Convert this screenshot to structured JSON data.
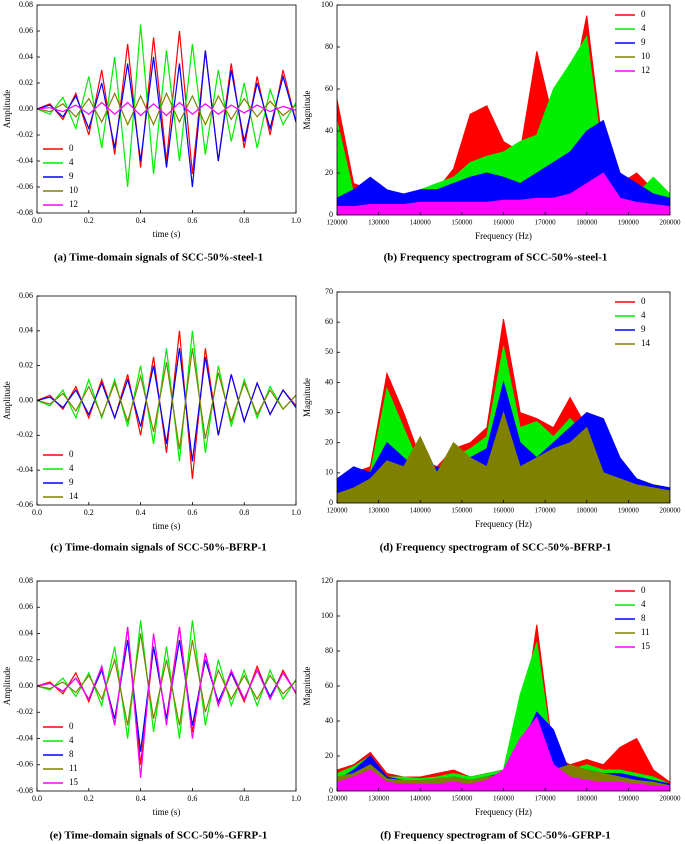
{
  "chart_data": [
    {
      "type": "line",
      "caption": "(a)  Time-domain signals of SCC-50%-steel-1",
      "x_label": "time (s)",
      "y_label": "Amplitude",
      "legend": "lower left",
      "x": [
        0,
        0.05,
        0.1,
        0.15,
        0.2,
        0.25,
        0.3,
        0.35,
        0.4,
        0.45,
        0.5,
        0.55,
        0.6,
        0.65,
        0.7,
        0.75,
        0.8,
        0.85,
        0.9,
        0.95,
        1.0
      ],
      "xlim": [
        0,
        1.0
      ],
      "xticks": [
        {
          "value": 0,
          "label": "0.0"
        },
        0.2,
        0.4,
        0.6,
        0.8,
        {
          "value": 1,
          "label": "1.0"
        }
      ],
      "ylim": [
        -0.08,
        0.08
      ],
      "yticks": [
        -0.08,
        -0.06,
        -0.04,
        -0.02,
        {
          "value": 0,
          "label": "0.00"
        },
        0.02,
        0.04,
        0.06,
        0.08
      ],
      "series": [
        {
          "name": "0",
          "color": "#ff0000",
          "values": [
            0,
            0.004,
            -0.008,
            0.012,
            -0.02,
            0.03,
            -0.035,
            0.05,
            -0.045,
            0.055,
            -0.04,
            0.06,
            -0.05,
            0.045,
            -0.04,
            0.035,
            -0.03,
            0.025,
            -0.02,
            0.03,
            -0.01
          ]
        },
        {
          "name": "4",
          "color": "#00ee00",
          "values": [
            0,
            -0.004,
            0.009,
            -0.015,
            0.025,
            -0.03,
            0.04,
            -0.06,
            0.065,
            -0.05,
            0.045,
            -0.04,
            0.05,
            -0.035,
            0.03,
            -0.025,
            0.02,
            -0.03,
            0.015,
            -0.012,
            0.005
          ]
        },
        {
          "name": "9",
          "color": "#0000ff",
          "values": [
            0,
            0.003,
            -0.006,
            0.01,
            -0.015,
            0.02,
            -0.03,
            0.035,
            -0.04,
            0.04,
            -0.045,
            0.035,
            -0.06,
            0.045,
            -0.04,
            0.03,
            -0.025,
            0.02,
            -0.015,
            0.025,
            -0.01
          ]
        },
        {
          "name": "10",
          "color": "#808000",
          "values": [
            0,
            -0.002,
            0.004,
            -0.006,
            0.008,
            -0.01,
            0.012,
            -0.012,
            0.01,
            -0.012,
            0.012,
            -0.01,
            0.01,
            -0.012,
            0.01,
            -0.008,
            0.008,
            -0.006,
            0.006,
            -0.005,
            0.003
          ]
        },
        {
          "name": "12",
          "color": "#ff00ff",
          "values": [
            0,
            0.001,
            -0.002,
            0.003,
            -0.004,
            0.005,
            -0.004,
            0.005,
            -0.005,
            0.004,
            -0.005,
            0.005,
            -0.004,
            0.004,
            -0.004,
            0.003,
            -0.003,
            0.003,
            -0.002,
            0.002,
            -0.001
          ]
        }
      ]
    },
    {
      "type": "area",
      "caption": "(b)  Frequency spectrogram of SCC-50%-steel-1",
      "x_label": "Frequency (Hz)",
      "y_label": "Magnitude",
      "legend": "upper right",
      "x": [
        120000,
        124000,
        128000,
        132000,
        136000,
        140000,
        144000,
        148000,
        152000,
        156000,
        160000,
        164000,
        168000,
        172000,
        176000,
        180000,
        184000,
        188000,
        192000,
        196000,
        200000
      ],
      "xlim": [
        120000,
        200000
      ],
      "xticks": [
        120000,
        130000,
        140000,
        150000,
        160000,
        170000,
        180000,
        190000,
        200000
      ],
      "ylim": [
        0,
        100
      ],
      "yticks": [
        0,
        20,
        40,
        60,
        80,
        100
      ],
      "series": [
        {
          "name": "0",
          "color": "#ff0000",
          "values": [
            55,
            15,
            12,
            10,
            8,
            10,
            12,
            22,
            48,
            52,
            35,
            30,
            78,
            45,
            55,
            95,
            30,
            15,
            20,
            12,
            8
          ]
        },
        {
          "name": "4",
          "color": "#00ee00",
          "values": [
            45,
            10,
            10,
            8,
            8,
            12,
            15,
            18,
            25,
            28,
            30,
            35,
            38,
            60,
            72,
            85,
            25,
            12,
            10,
            18,
            10
          ]
        },
        {
          "name": "9",
          "color": "#0000ff",
          "values": [
            8,
            12,
            18,
            12,
            10,
            12,
            12,
            15,
            18,
            20,
            18,
            15,
            20,
            25,
            30,
            40,
            45,
            20,
            15,
            10,
            8
          ]
        },
        {
          "name": "10",
          "color": "#808000",
          "values": [
            3,
            3,
            3,
            4,
            4,
            4,
            5,
            5,
            5,
            5,
            5,
            5,
            6,
            6,
            7,
            8,
            15,
            5,
            4,
            4,
            3
          ]
        },
        {
          "name": "12",
          "color": "#ff00ff",
          "values": [
            4,
            4,
            5,
            5,
            5,
            6,
            6,
            6,
            6,
            6,
            7,
            7,
            8,
            8,
            10,
            15,
            20,
            8,
            6,
            5,
            4
          ]
        }
      ]
    },
    {
      "type": "line",
      "caption": "(c)  Time-domain signals of SCC-50%-BFRP-1",
      "x_label": "time (s)",
      "y_label": "Amplitude",
      "legend": "lower left",
      "x": [
        0,
        0.05,
        0.1,
        0.15,
        0.2,
        0.25,
        0.3,
        0.35,
        0.4,
        0.45,
        0.5,
        0.55,
        0.6,
        0.65,
        0.7,
        0.75,
        0.8,
        0.85,
        0.9,
        0.95,
        1.0
      ],
      "xlim": [
        0,
        1.0
      ],
      "xticks": [
        {
          "value": 0,
          "label": "0.0"
        },
        0.2,
        0.4,
        0.6,
        0.8,
        {
          "value": 1,
          "label": "1.0"
        }
      ],
      "ylim": [
        -0.06,
        0.06
      ],
      "yticks": [
        -0.06,
        -0.04,
        -0.02,
        {
          "value": 0,
          "label": "0.00"
        },
        0.02,
        0.04,
        0.06
      ],
      "series": [
        {
          "name": "0",
          "color": "#ff0000",
          "values": [
            0,
            0.003,
            -0.005,
            0.008,
            -0.01,
            0.012,
            -0.01,
            0.015,
            -0.02,
            0.025,
            -0.03,
            0.04,
            -0.045,
            0.03,
            -0.02,
            0.015,
            -0.012,
            0.01,
            -0.008,
            0.006,
            -0.003
          ]
        },
        {
          "name": "4",
          "color": "#00ee00",
          "values": [
            0,
            -0.003,
            0.006,
            -0.01,
            0.012,
            -0.01,
            0.012,
            -0.015,
            0.02,
            -0.025,
            0.03,
            -0.035,
            0.04,
            -0.03,
            0.02,
            -0.015,
            0.012,
            -0.01,
            0.008,
            -0.005,
            0.003
          ]
        },
        {
          "name": "9",
          "color": "#0000ff",
          "values": [
            0,
            0.002,
            -0.004,
            0.006,
            -0.008,
            0.01,
            -0.01,
            0.012,
            -0.015,
            0.02,
            -0.025,
            0.03,
            -0.035,
            0.025,
            -0.02,
            0.015,
            -0.012,
            0.01,
            -0.008,
            0.006,
            -0.004
          ]
        },
        {
          "name": "14",
          "color": "#808000",
          "values": [
            0,
            -0.002,
            0.004,
            -0.006,
            0.008,
            -0.009,
            0.01,
            -0.012,
            0.014,
            -0.018,
            0.022,
            -0.028,
            0.03,
            -0.022,
            0.016,
            -0.012,
            0.01,
            -0.008,
            0.006,
            -0.005,
            0.003
          ]
        }
      ]
    },
    {
      "type": "area",
      "caption": "(d)  Frequency spectrogram of SCC-50%-BFRP-1",
      "x_label": "Frequency (Hz)",
      "y_label": "Magnitude",
      "legend": "upper right",
      "x": [
        120000,
        124000,
        128000,
        132000,
        136000,
        140000,
        144000,
        148000,
        152000,
        156000,
        160000,
        164000,
        168000,
        172000,
        176000,
        180000,
        184000,
        188000,
        192000,
        196000,
        200000
      ],
      "xlim": [
        120000,
        200000
      ],
      "xticks": [
        120000,
        130000,
        140000,
        150000,
        160000,
        170000,
        180000,
        190000,
        200000
      ],
      "ylim": [
        0,
        70
      ],
      "yticks": [
        0,
        10,
        20,
        30,
        40,
        50,
        60,
        70
      ],
      "series": [
        {
          "name": "0",
          "color": "#ff0000",
          "values": [
            5,
            10,
            12,
            43,
            30,
            15,
            12,
            18,
            20,
            25,
            61,
            30,
            28,
            25,
            35,
            25,
            15,
            12,
            8,
            6,
            5
          ]
        },
        {
          "name": "4",
          "color": "#00ee00",
          "values": [
            5,
            8,
            10,
            38,
            25,
            12,
            10,
            15,
            18,
            22,
            52,
            25,
            27,
            22,
            28,
            22,
            12,
            10,
            8,
            6,
            5
          ]
        },
        {
          "name": "9",
          "color": "#0000ff",
          "values": [
            8,
            12,
            10,
            20,
            15,
            10,
            12,
            10,
            15,
            18,
            40,
            20,
            15,
            20,
            25,
            30,
            28,
            15,
            8,
            6,
            5
          ]
        },
        {
          "name": "14",
          "color": "#808000",
          "values": [
            3,
            5,
            8,
            14,
            12,
            22,
            10,
            20,
            15,
            12,
            30,
            12,
            15,
            18,
            20,
            25,
            10,
            8,
            6,
            5,
            4
          ]
        }
      ]
    },
    {
      "type": "line",
      "caption": "(e)  Time-domain signals of SCC-50%-GFRP-1",
      "x_label": "time (s)",
      "y_label": "Amplitude",
      "legend": "lower left",
      "x": [
        0,
        0.05,
        0.1,
        0.15,
        0.2,
        0.25,
        0.3,
        0.35,
        0.4,
        0.45,
        0.5,
        0.55,
        0.6,
        0.65,
        0.7,
        0.75,
        0.8,
        0.85,
        0.9,
        0.95,
        1.0
      ],
      "xlim": [
        0,
        1.0
      ],
      "xticks": [
        {
          "value": 0,
          "label": "0.0"
        },
        0.2,
        0.4,
        0.6,
        0.8,
        {
          "value": 1,
          "label": "1.0"
        }
      ],
      "ylim": [
        -0.08,
        0.08
      ],
      "yticks": [
        -0.08,
        -0.06,
        -0.04,
        -0.02,
        {
          "value": 0,
          "label": "0.00"
        },
        0.02,
        0.04,
        0.06,
        0.08
      ],
      "series": [
        {
          "name": "0",
          "color": "#ff0000",
          "values": [
            0,
            0.003,
            -0.006,
            0.01,
            -0.012,
            0.015,
            -0.03,
            0.045,
            -0.06,
            0.03,
            -0.025,
            0.045,
            -0.035,
            0.025,
            -0.015,
            0.01,
            -0.012,
            0.015,
            -0.01,
            0.012,
            -0.006
          ]
        },
        {
          "name": "4",
          "color": "#00ee00",
          "values": [
            0,
            -0.003,
            0.006,
            -0.008,
            0.01,
            -0.015,
            0.03,
            -0.04,
            0.05,
            -0.035,
            0.03,
            -0.04,
            0.05,
            -0.03,
            0.02,
            -0.015,
            0.012,
            -0.015,
            0.012,
            -0.01,
            0.005
          ]
        },
        {
          "name": "8",
          "color": "#0000ff",
          "values": [
            0,
            0.002,
            -0.004,
            0.006,
            -0.01,
            0.012,
            -0.025,
            0.035,
            -0.05,
            0.03,
            -0.025,
            0.035,
            -0.03,
            0.02,
            -0.012,
            0.01,
            -0.01,
            0.012,
            -0.008,
            0.01,
            -0.005
          ]
        },
        {
          "name": "11",
          "color": "#808000",
          "values": [
            0,
            -0.002,
            0.003,
            -0.005,
            0.008,
            -0.01,
            0.02,
            -0.03,
            0.04,
            -0.025,
            0.02,
            -0.03,
            0.035,
            -0.02,
            0.012,
            -0.01,
            0.008,
            -0.01,
            0.008,
            -0.006,
            0.004
          ]
        },
        {
          "name": "15",
          "color": "#ff00ff",
          "values": [
            0,
            0.002,
            -0.004,
            0.006,
            -0.01,
            0.015,
            -0.03,
            0.045,
            -0.07,
            0.04,
            -0.03,
            0.045,
            -0.04,
            0.025,
            -0.015,
            0.012,
            -0.01,
            0.012,
            -0.01,
            0.01,
            -0.005
          ]
        }
      ]
    },
    {
      "type": "area",
      "caption": "(f)  Frequency spectrogram of SCC-50%-GFRP-1",
      "x_label": "Frequency (Hz)",
      "y_label": "Magnitude",
      "legend": "upper right",
      "x": [
        120000,
        124000,
        128000,
        132000,
        136000,
        140000,
        144000,
        148000,
        152000,
        156000,
        160000,
        164000,
        168000,
        172000,
        176000,
        180000,
        184000,
        188000,
        192000,
        196000,
        200000
      ],
      "xlim": [
        120000,
        200000
      ],
      "xticks": [
        120000,
        130000,
        140000,
        150000,
        160000,
        170000,
        180000,
        190000,
        200000
      ],
      "ylim": [
        0,
        120
      ],
      "yticks": [
        0,
        20,
        40,
        60,
        80,
        100,
        120
      ],
      "series": [
        {
          "name": "0",
          "color": "#ff0000",
          "values": [
            12,
            15,
            22,
            10,
            8,
            8,
            10,
            12,
            8,
            10,
            12,
            30,
            95,
            20,
            15,
            18,
            15,
            25,
            30,
            12,
            5
          ]
        },
        {
          "name": "4",
          "color": "#00ee00",
          "values": [
            10,
            14,
            20,
            8,
            8,
            7,
            8,
            10,
            8,
            10,
            12,
            55,
            85,
            18,
            12,
            15,
            12,
            12,
            10,
            8,
            4
          ]
        },
        {
          "name": "8",
          "color": "#0000ff",
          "values": [
            6,
            12,
            20,
            8,
            6,
            6,
            6,
            8,
            6,
            8,
            10,
            25,
            45,
            35,
            10,
            12,
            10,
            10,
            8,
            6,
            4
          ]
        },
        {
          "name": "11",
          "color": "#808000",
          "values": [
            8,
            10,
            15,
            7,
            6,
            6,
            7,
            8,
            6,
            8,
            9,
            15,
            20,
            12,
            15,
            12,
            10,
            8,
            6,
            5,
            3
          ]
        },
        {
          "name": "15",
          "color": "#ff00ff",
          "values": [
            5,
            8,
            12,
            5,
            4,
            4,
            4,
            5,
            4,
            6,
            12,
            30,
            42,
            15,
            8,
            6,
            5,
            5,
            4,
            3,
            3
          ]
        }
      ]
    }
  ]
}
